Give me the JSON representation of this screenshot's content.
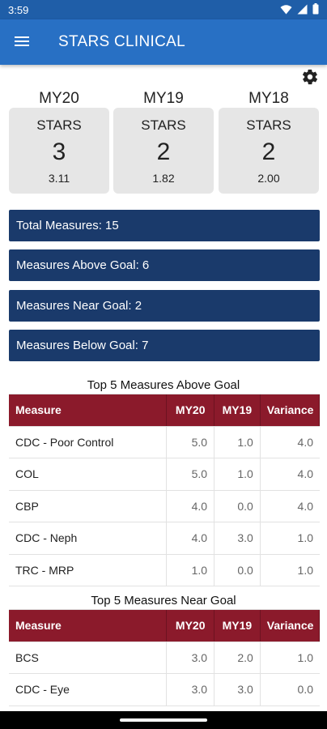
{
  "status_bar": {
    "time": "3:59",
    "colors": {
      "background": "#1f5ea8"
    }
  },
  "app_bar": {
    "title": "STARS CLINICAL",
    "color": "#2870c4"
  },
  "years": [
    {
      "label": "MY20",
      "stars_label": "STARS",
      "stars": "3",
      "score": "3.11"
    },
    {
      "label": "MY19",
      "stars_label": "STARS",
      "stars": "2",
      "score": "1.82"
    },
    {
      "label": "MY18",
      "stars_label": "STARS",
      "stars": "2",
      "score": "2.00"
    }
  ],
  "summary": {
    "color": "#1a3a6b",
    "items": [
      "Total Measures: 15",
      "Measures Above Goal: 6",
      "Measures Near Goal: 2",
      "Measures Below Goal: 7"
    ]
  },
  "tables": {
    "header_color": "#8b1a2b",
    "columns": [
      "Measure",
      "MY20",
      "MY19",
      "Variance"
    ],
    "above_goal": {
      "title": "Top 5 Measures Above Goal",
      "rows": [
        [
          "CDC - Poor Control",
          "5.0",
          "1.0",
          "4.0"
        ],
        [
          "COL",
          "5.0",
          "1.0",
          "4.0"
        ],
        [
          "CBP",
          "4.0",
          "0.0",
          "4.0"
        ],
        [
          "CDC - Neph",
          "4.0",
          "3.0",
          "1.0"
        ],
        [
          "TRC - MRP",
          "1.0",
          "0.0",
          "1.0"
        ]
      ]
    },
    "near_goal": {
      "title": "Top 5 Measures Near Goal",
      "rows": [
        [
          "BCS",
          "3.0",
          "2.0",
          "1.0"
        ],
        [
          "CDC - Eye",
          "3.0",
          "3.0",
          "0.0"
        ]
      ]
    }
  },
  "icons": {
    "menu": "hamburger-icon",
    "settings": "gear-icon",
    "wifi": "wifi-icon",
    "signal": "signal-icon",
    "battery": "battery-icon"
  }
}
